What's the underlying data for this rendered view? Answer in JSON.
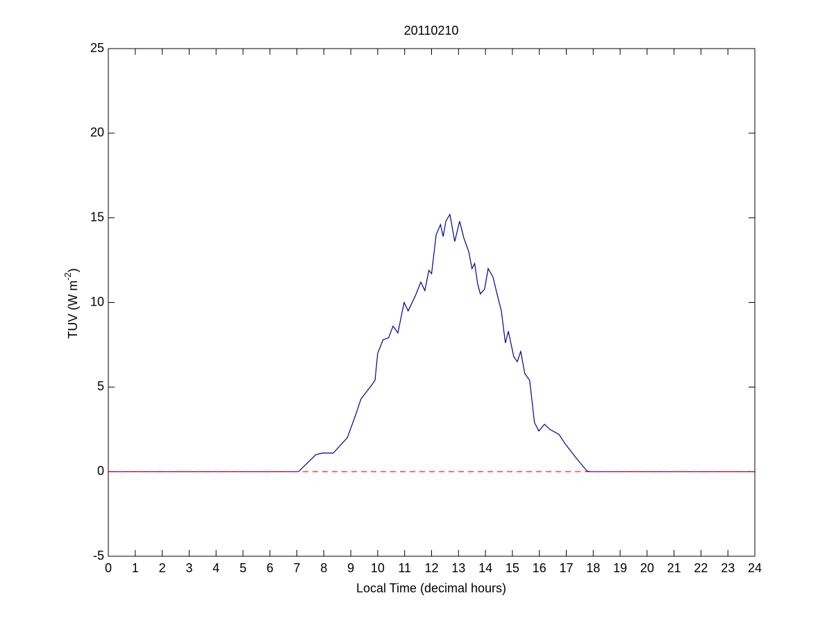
{
  "chart_data": {
    "type": "line",
    "title": "20110210",
    "xlabel": "Local Time (decimal hours)",
    "ylabel": [
      "TUV (W m",
      "-2",
      ")"
    ],
    "series": [
      {
        "color": "#00008b",
        "dash": false,
        "x": [
          0,
          7.06,
          7.7,
          7.95,
          8.35,
          8.87,
          9.17,
          9.38,
          9.77,
          9.9,
          10.0,
          10.2,
          10.4,
          10.57,
          10.75,
          10.98,
          11.13,
          11.4,
          11.6,
          11.75,
          11.9,
          12.0,
          12.17,
          12.33,
          12.43,
          12.53,
          12.68,
          12.86,
          13.04,
          13.2,
          13.38,
          13.5,
          13.6,
          13.71,
          13.81,
          13.97,
          14.1,
          14.28,
          14.43,
          14.59,
          14.74,
          14.85,
          15.05,
          15.18,
          15.31,
          15.46,
          15.64,
          15.82,
          15.98,
          16.19,
          16.39,
          16.73,
          16.98,
          17.37,
          17.76,
          17.9,
          24
        ],
        "values": [
          0,
          0,
          1.0,
          1.1,
          1.1,
          2.0,
          3.3,
          4.3,
          5.1,
          5.4,
          7.0,
          7.8,
          7.9,
          8.6,
          8.2,
          10.0,
          9.5,
          10.4,
          11.2,
          10.7,
          11.9,
          11.7,
          14.0,
          14.6,
          13.9,
          14.8,
          15.2,
          13.6,
          14.8,
          13.8,
          13.0,
          12.0,
          12.3,
          11.1,
          10.5,
          10.8,
          12.0,
          11.5,
          10.5,
          9.5,
          7.6,
          8.3,
          6.8,
          6.5,
          7.1,
          5.8,
          5.4,
          2.9,
          2.4,
          2.8,
          2.5,
          2.2,
          1.6,
          0.8,
          0.05,
          0,
          0
        ]
      },
      {
        "color": "#ff0000",
        "dash": true,
        "x": [
          0,
          24
        ],
        "values": [
          0,
          0
        ]
      }
    ],
    "xlim": [
      0,
      24
    ],
    "xticks": [
      0,
      1,
      2,
      3,
      4,
      5,
      6,
      7,
      8,
      9,
      10,
      11,
      12,
      13,
      14,
      15,
      16,
      17,
      18,
      19,
      20,
      21,
      22,
      23,
      24
    ],
    "ylim": [
      -5,
      25
    ],
    "yticks": [
      -5,
      0,
      5,
      10,
      15,
      20,
      25
    ],
    "grid": false
  }
}
